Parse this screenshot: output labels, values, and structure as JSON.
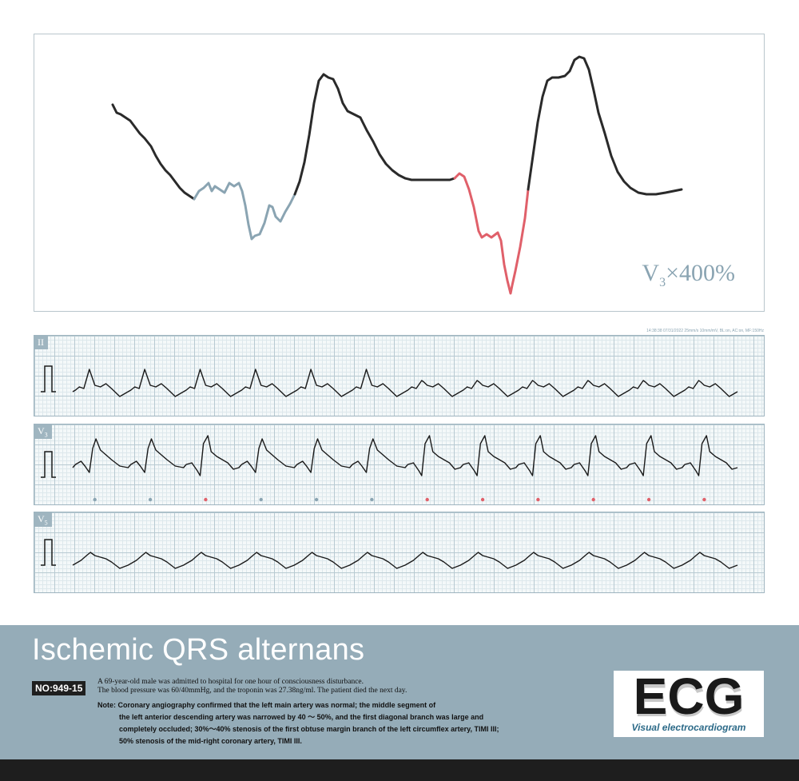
{
  "zoom": {
    "lead": "V",
    "lead_sub": "3",
    "scale": "×400%"
  },
  "device_info": "14:38:38 07/31/2022 25mm/s 10mm/mV, BL:on, AC:on, MF:150Hz",
  "strips": [
    {
      "lead": "II",
      "lead_sub": ""
    },
    {
      "lead": "V",
      "lead_sub": "3"
    },
    {
      "lead": "V",
      "lead_sub": "5"
    }
  ],
  "alternans_marker_colors": [
    "blue",
    "blue",
    "red",
    "blue",
    "blue",
    "blue",
    "red",
    "red",
    "red",
    "red",
    "red",
    "red"
  ],
  "colors": {
    "band": "#95acb8",
    "trace": "#1a1a1a",
    "highlight_blue": "#8aa4b2",
    "highlight_red": "#e0606a",
    "grid": "#b8cad2"
  },
  "title": "Ischemic QRS alternans",
  "case_no": "NO:949-15",
  "description_lines": [
    "A 69-year-old male was admitted to hospital for one hour of consciousness disturbance.",
    "The blood pressure was 60/40mmHg, and the troponin was 27.38ng/ml.  The patient died the next day."
  ],
  "note": {
    "label": "Note:",
    "first": "Coronary angiography confirmed that the left main artery was normal; the middle segment of",
    "lines": [
      "the left anterior descending artery was narrowed by 40 ～ 50%, and the first diagonal branch was large and",
      "completely occluded; 30%～40% stenosis of  the first obtuse margin branch of the left circumflex artery, TIMI III;",
      "50% stenosis of the mid-right coronary artery, TIMI III."
    ]
  },
  "logo": {
    "text": "ECG",
    "subtitle": "Visual electrocardiogram"
  },
  "side_id": "598244053"
}
